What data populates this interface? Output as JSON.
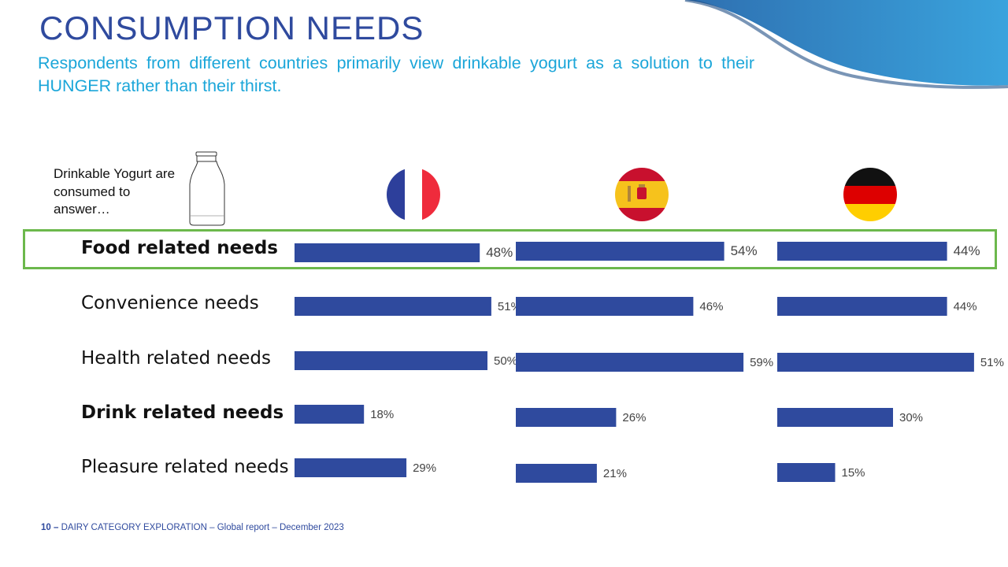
{
  "slide": {
    "title": "CONSUMPTION NEEDS",
    "subtitle": "Respondents from different countries primarily view drinkable yogurt as a solution to their HUNGER rather than their thirst.",
    "intro": "Drinkable Yogurt are consumed to answer…"
  },
  "footer": {
    "page": "10 –",
    "text": "DAIRY CATEGORY EXPLORATION – Global report – December 2023"
  },
  "colors": {
    "bar": "#2f4a9e",
    "title": "#2f4a9e",
    "subtitle": "#1ba6d9",
    "highlight_border": "#6cb84c"
  },
  "flags": [
    {
      "icon": "france-flag-icon"
    },
    {
      "icon": "spain-flag-icon"
    },
    {
      "icon": "germany-flag-icon"
    }
  ],
  "chart_data": {
    "type": "bar",
    "categories": [
      "Food related needs",
      "Convenience needs",
      "Health related needs",
      "Drink related needs",
      "Pleasure related needs"
    ],
    "bold_categories": [
      "Food related needs",
      "Drink related needs"
    ],
    "highlighted_category": "Food related needs",
    "series": [
      {
        "values": [
          48,
          51,
          50,
          18,
          29
        ],
        "labels": [
          "48%",
          "51%",
          "50%",
          "18%",
          "29%"
        ]
      },
      {
        "values": [
          54,
          46,
          59,
          26,
          21
        ],
        "labels": [
          "54%",
          "46%",
          "59%",
          "26%",
          "21%"
        ]
      },
      {
        "values": [
          44,
          44,
          51,
          30,
          15
        ],
        "labels": [
          "44%",
          "44%",
          "51%",
          "30%",
          "15%"
        ]
      }
    ],
    "unit": "%",
    "xlim": [
      0,
      60
    ],
    "grid": false,
    "legend": "none"
  }
}
